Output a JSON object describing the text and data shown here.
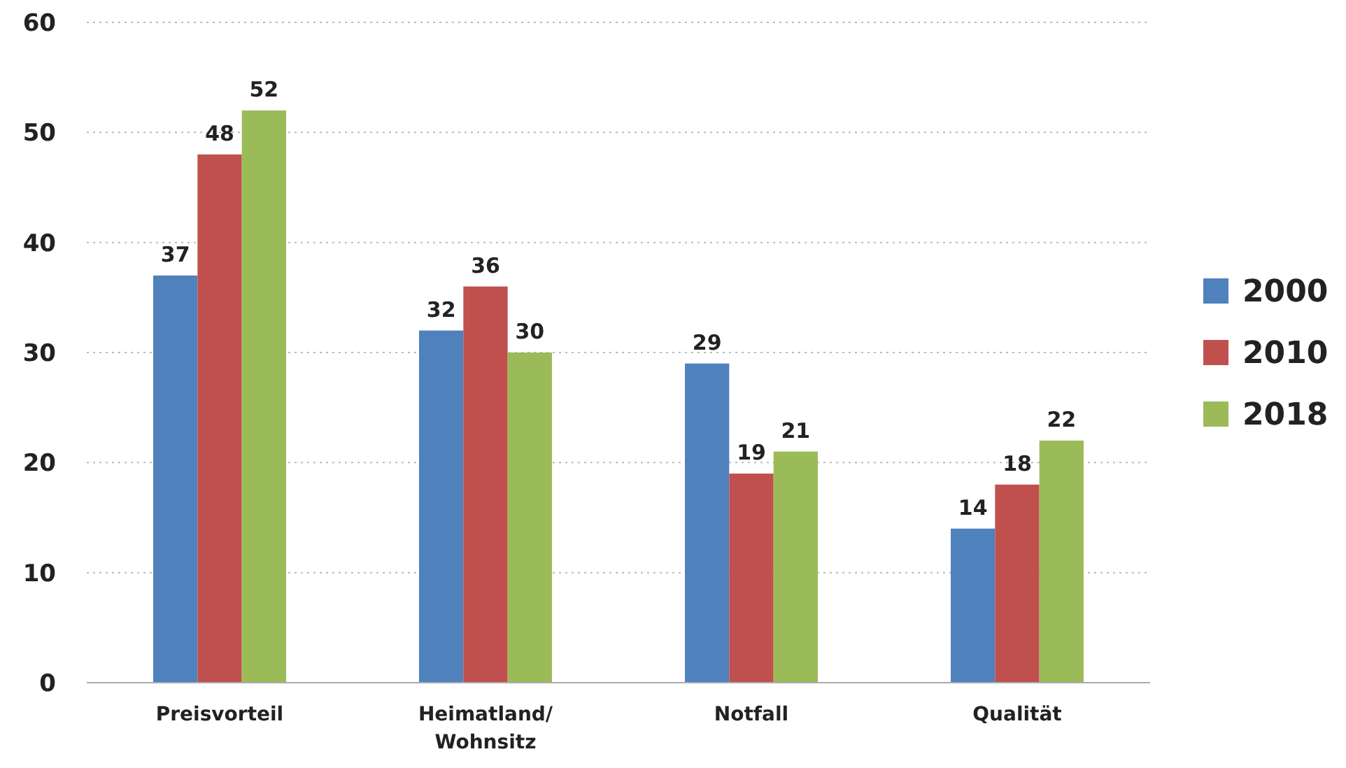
{
  "chart_data": {
    "type": "bar",
    "categories": [
      "Preisvorteil",
      "Heimatland/ Wohnsitz",
      "Notfall",
      "Qualität"
    ],
    "series": [
      {
        "name": "2000",
        "color": "#4f81bd",
        "values": [
          37,
          32,
          29,
          14
        ]
      },
      {
        "name": "2010",
        "color": "#c0504d",
        "values": [
          48,
          36,
          19,
          18
        ]
      },
      {
        "name": "2018",
        "color": "#9bbb59",
        "values": [
          52,
          30,
          21,
          22
        ]
      }
    ],
    "ylim": [
      0,
      60
    ],
    "yticks": [
      0,
      10,
      20,
      30,
      40,
      50,
      60
    ],
    "grid": "y",
    "legend": "right",
    "data_labels": true
  }
}
